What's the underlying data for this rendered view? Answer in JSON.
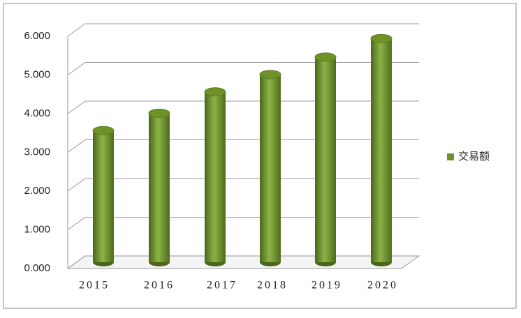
{
  "chart_data": {
    "type": "bar",
    "categories": [
      "2015",
      "2016",
      "2017",
      "2018",
      "2019",
      "2020"
    ],
    "series": [
      {
        "name": "交易额",
        "color": "#6f9128",
        "values": [
          3.4,
          3.85,
          4.4,
          4.85,
          5.3,
          5.78
        ]
      }
    ],
    "ylim": [
      0,
      6
    ],
    "yticks": [
      {
        "value": 0,
        "label": "0.000"
      },
      {
        "value": 1,
        "label": "1.000"
      },
      {
        "value": 2,
        "label": "2.000"
      },
      {
        "value": 3,
        "label": "3.000"
      },
      {
        "value": 4,
        "label": "4.000"
      },
      {
        "value": 5,
        "label": "5.000"
      },
      {
        "value": 6,
        "label": "6.000"
      }
    ],
    "grid": true,
    "legend": "right"
  }
}
